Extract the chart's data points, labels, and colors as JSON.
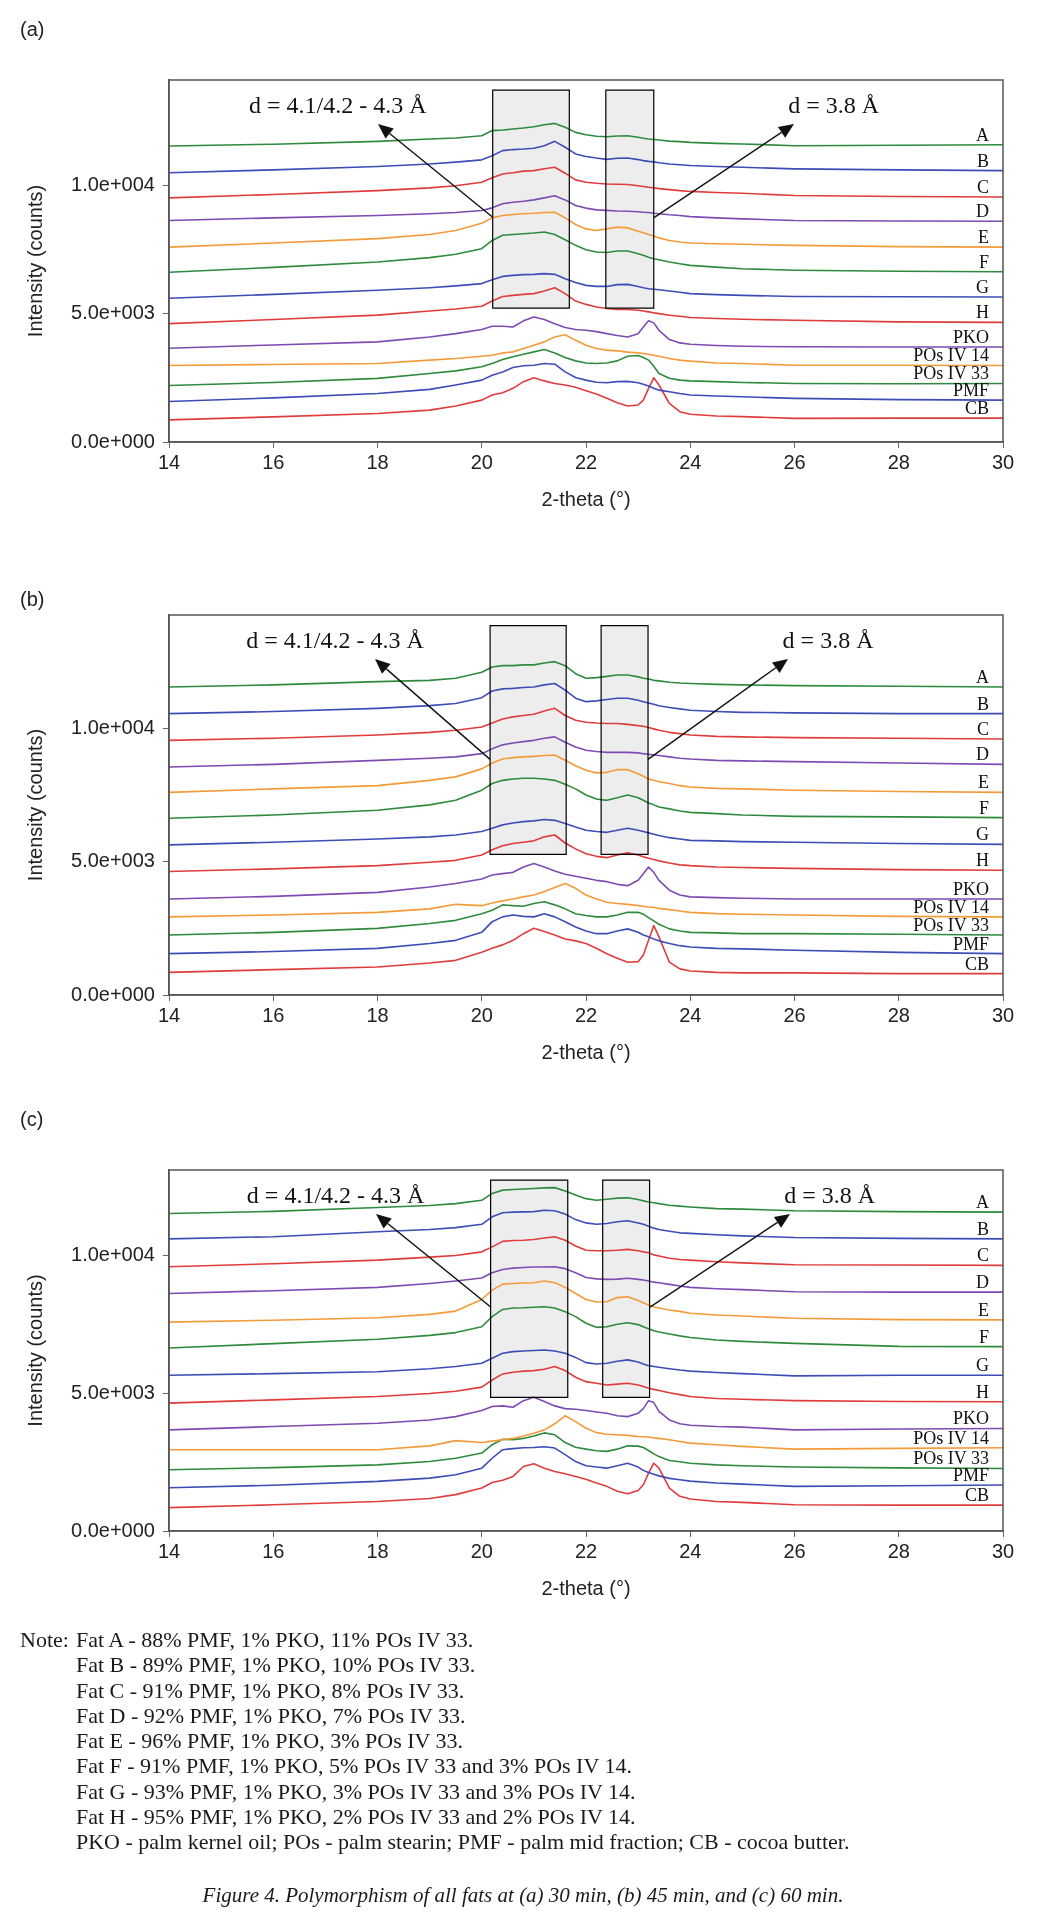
{
  "chart_data": [
    {
      "type": "line",
      "title": "(a)",
      "xlabel": "2-theta (°)",
      "ylabel": "Intensity (counts)",
      "marker": "none",
      "x": [
        14,
        16,
        18,
        19,
        19.5,
        20,
        20.2,
        20.4,
        20.6,
        20.8,
        21,
        21.2,
        21.4,
        21.6,
        21.8,
        22,
        22.2,
        22.4,
        22.6,
        22.8,
        23,
        23.1,
        23.2,
        23.3,
        23.4,
        23.6,
        23.8,
        24,
        24.5,
        25,
        26,
        28,
        30
      ],
      "xlim": [
        14,
        30
      ],
      "xticks": [
        14,
        16,
        18,
        20,
        22,
        24,
        26,
        28,
        30
      ],
      "ylim": [
        0,
        14100
      ],
      "yticks": [
        {
          "value": 0,
          "label": "0.0e+000"
        },
        {
          "value": 5000,
          "label": "5.0e+003"
        },
        {
          "value": 10000,
          "label": "1.0e+004"
        }
      ],
      "series": [
        {
          "name": "A",
          "color": "#2e8b3e",
          "values": [
            11530,
            11600,
            11710,
            11800,
            11840,
            11930,
            12130,
            12150,
            12190,
            12230,
            12280,
            12360,
            12410,
            12260,
            12060,
            11970,
            11910,
            11890,
            11920,
            11930,
            11870,
            11830,
            11800,
            11780,
            11760,
            11720,
            11700,
            11670,
            11630,
            11610,
            11540,
            11560,
            11580
          ]
        },
        {
          "name": "B",
          "color": "#3d4db7",
          "values": [
            10490,
            10600,
            10730,
            10830,
            10900,
            10990,
            11150,
            11350,
            11390,
            11410,
            11440,
            11540,
            11710,
            11480,
            11220,
            11120,
            11060,
            11010,
            11050,
            11060,
            11000,
            10960,
            10930,
            10910,
            10880,
            10830,
            10800,
            10770,
            10730,
            10700,
            10640,
            10600,
            10570
          ]
        },
        {
          "name": "C",
          "color": "#e03c3c",
          "values": [
            9510,
            9640,
            9790,
            9900,
            9980,
            10120,
            10290,
            10440,
            10490,
            10550,
            10570,
            10640,
            10700,
            10470,
            10210,
            10120,
            10080,
            10050,
            10040,
            10030,
            9980,
            9950,
            9920,
            9900,
            9870,
            9830,
            9790,
            9760,
            9720,
            9690,
            9600,
            9560,
            9540
          ]
        },
        {
          "name": "D",
          "color": "#7e4bb3",
          "values": [
            8630,
            8730,
            8820,
            8890,
            8940,
            9020,
            9120,
            9280,
            9340,
            9380,
            9430,
            9510,
            9590,
            9430,
            9210,
            9110,
            9040,
            9020,
            9000,
            8990,
            8970,
            8950,
            8940,
            8910,
            8890,
            8850,
            8820,
            8780,
            8730,
            8690,
            8630,
            8610,
            8600
          ]
        },
        {
          "name": "E",
          "color": "#f59a38",
          "values": [
            7590,
            7750,
            7920,
            8080,
            8240,
            8520,
            8730,
            8820,
            8860,
            8890,
            8910,
            8940,
            8950,
            8730,
            8470,
            8300,
            8240,
            8300,
            8370,
            8340,
            8210,
            8150,
            8080,
            8020,
            7950,
            7850,
            7790,
            7750,
            7720,
            7700,
            7660,
            7610,
            7590
          ]
        },
        {
          "name": "F",
          "color": "#2e8b3e",
          "values": [
            6610,
            6800,
            7010,
            7180,
            7310,
            7530,
            7850,
            8050,
            8080,
            8110,
            8140,
            8180,
            8080,
            7880,
            7660,
            7490,
            7400,
            7380,
            7440,
            7440,
            7330,
            7270,
            7200,
            7140,
            7100,
            7010,
            6940,
            6880,
            6810,
            6750,
            6690,
            6650,
            6630
          ]
        },
        {
          "name": "G",
          "color": "#3d4db7",
          "values": [
            5600,
            5750,
            5910,
            6010,
            6080,
            6170,
            6320,
            6450,
            6490,
            6520,
            6530,
            6560,
            6530,
            6360,
            6210,
            6100,
            6060,
            6060,
            6130,
            6140,
            6060,
            6010,
            5970,
            5950,
            5930,
            5880,
            5830,
            5780,
            5740,
            5710,
            5670,
            5660,
            5650
          ]
        },
        {
          "name": "H",
          "color": "#e03c3c",
          "values": [
            4610,
            4770,
            4940,
            5100,
            5180,
            5290,
            5490,
            5670,
            5710,
            5750,
            5780,
            5880,
            6010,
            5780,
            5490,
            5360,
            5260,
            5200,
            5160,
            5160,
            5130,
            5100,
            5070,
            5030,
            5000,
            4940,
            4900,
            4850,
            4810,
            4780,
            4740,
            4680,
            4660
          ]
        },
        {
          "name": "PKO",
          "color": "#7e4bb3",
          "values": [
            3650,
            3780,
            3900,
            4090,
            4220,
            4380,
            4510,
            4510,
            4480,
            4720,
            4870,
            4770,
            4610,
            4460,
            4380,
            4350,
            4300,
            4220,
            4150,
            4090,
            4220,
            4480,
            4720,
            4640,
            4350,
            3990,
            3860,
            3810,
            3760,
            3730,
            3710,
            3700,
            3700
          ]
        },
        {
          "name": "POs IV 14",
          "color": "#f59a38",
          "values": [
            2980,
            3020,
            3060,
            3190,
            3250,
            3340,
            3380,
            3470,
            3510,
            3640,
            3770,
            3900,
            4090,
            4180,
            3960,
            3770,
            3640,
            3580,
            3550,
            3500,
            3470,
            3450,
            3420,
            3380,
            3340,
            3250,
            3190,
            3150,
            3080,
            3060,
            2990,
            2990,
            2980
          ]
        },
        {
          "name": "POs IV 33",
          "color": "#2e8b3e",
          "values": [
            2200,
            2320,
            2480,
            2670,
            2770,
            2930,
            3060,
            3210,
            3320,
            3420,
            3510,
            3600,
            3470,
            3290,
            3160,
            3080,
            3060,
            3080,
            3160,
            3340,
            3370,
            3290,
            3190,
            2950,
            2670,
            2480,
            2410,
            2380,
            2350,
            2320,
            2280,
            2270,
            2280
          ]
        },
        {
          "name": "PMF",
          "color": "#3d4db7",
          "values": [
            1580,
            1720,
            1890,
            2050,
            2220,
            2410,
            2600,
            2730,
            2900,
            2970,
            2990,
            3060,
            3030,
            2730,
            2510,
            2410,
            2330,
            2310,
            2350,
            2360,
            2310,
            2250,
            2180,
            2090,
            2020,
            1960,
            1890,
            1830,
            1790,
            1760,
            1700,
            1650,
            1630
          ]
        },
        {
          "name": "CB",
          "color": "#e03c3c",
          "values": [
            860,
            980,
            1110,
            1240,
            1400,
            1630,
            1830,
            1920,
            2090,
            2350,
            2500,
            2380,
            2280,
            2220,
            2130,
            2000,
            1870,
            1700,
            1530,
            1400,
            1440,
            1630,
            2090,
            2500,
            2220,
            1500,
            1180,
            1080,
            1010,
            990,
            920,
            930,
            930
          ]
        }
      ],
      "bands": [
        {
          "axis": "x",
          "from": 20.21,
          "to": 21.68,
          "label": "d = 4.1/4.2 - 4.3 Å",
          "color": "#000000"
        },
        {
          "axis": "x",
          "from": 22.38,
          "to": 23.3,
          "label": "d = 3.8 Å",
          "color": "#000000"
        }
      ]
    },
    {
      "type": "line",
      "title": "(b)",
      "xlabel": "2-theta (°)",
      "ylabel": "Intensity (counts)",
      "marker": "none",
      "x": [
        14,
        16,
        18,
        19,
        19.5,
        20,
        20.2,
        20.4,
        20.6,
        20.8,
        21,
        21.2,
        21.4,
        21.6,
        21.8,
        22,
        22.2,
        22.4,
        22.6,
        22.8,
        23,
        23.1,
        23.2,
        23.3,
        23.4,
        23.6,
        23.8,
        24,
        24.5,
        25,
        26,
        28,
        30
      ],
      "xlim": [
        14,
        30
      ],
      "xticks": [
        14,
        16,
        18,
        20,
        22,
        24,
        26,
        28,
        30
      ],
      "ylim": [
        0,
        14250
      ],
      "yticks": [
        {
          "value": 0,
          "label": "0.0e+000"
        },
        {
          "value": 5000,
          "label": "5.0e+003"
        },
        {
          "value": 10000,
          "label": "1.0e+004"
        }
      ],
      "series": [
        {
          "name": "A",
          "color": "#2e8b3e",
          "values": [
            11550,
            11630,
            11750,
            11800,
            11880,
            12100,
            12300,
            12350,
            12350,
            12380,
            12380,
            12450,
            12500,
            12350,
            12050,
            11880,
            11900,
            11950,
            12000,
            12000,
            11930,
            11880,
            11850,
            11800,
            11780,
            11730,
            11700,
            11680,
            11650,
            11630,
            11600,
            11580,
            11550
          ]
        },
        {
          "name": "B",
          "color": "#3d4db7",
          "values": [
            10550,
            10630,
            10750,
            10850,
            10930,
            11150,
            11400,
            11480,
            11500,
            11530,
            11550,
            11630,
            11680,
            11430,
            11130,
            11000,
            11030,
            11080,
            11130,
            11130,
            11050,
            11000,
            10950,
            10900,
            10850,
            10780,
            10730,
            10680,
            10630,
            10600,
            10580,
            10550,
            10550
          ]
        },
        {
          "name": "C",
          "color": "#e03c3c",
          "values": [
            9550,
            9630,
            9750,
            9850,
            9930,
            10050,
            10200,
            10350,
            10430,
            10480,
            10530,
            10650,
            10750,
            10480,
            10300,
            10230,
            10200,
            10180,
            10180,
            10150,
            10100,
            10080,
            10030,
            9980,
            9930,
            9850,
            9800,
            9750,
            9700,
            9680,
            9650,
            9630,
            9600
          ]
        },
        {
          "name": "D",
          "color": "#7e4bb3",
          "values": [
            8550,
            8650,
            8800,
            8880,
            8930,
            9050,
            9230,
            9380,
            9450,
            9500,
            9550,
            9630,
            9680,
            9480,
            9300,
            9180,
            9130,
            9100,
            9100,
            9100,
            9080,
            9050,
            9030,
            9000,
            8980,
            8930,
            8880,
            8850,
            8800,
            8780,
            8750,
            8700,
            8650
          ]
        },
        {
          "name": "E",
          "color": "#f59a38",
          "values": [
            7600,
            7730,
            7850,
            8050,
            8180,
            8480,
            8700,
            8850,
            8900,
            8930,
            8950,
            8980,
            9000,
            8800,
            8600,
            8430,
            8330,
            8350,
            8450,
            8450,
            8300,
            8200,
            8100,
            8050,
            8000,
            7930,
            7850,
            7800,
            7750,
            7730,
            7680,
            7630,
            7600
          ]
        },
        {
          "name": "F",
          "color": "#2e8b3e",
          "values": [
            6630,
            6750,
            6930,
            7130,
            7300,
            7680,
            7930,
            8050,
            8100,
            8130,
            8130,
            8100,
            8050,
            7900,
            7730,
            7500,
            7350,
            7300,
            7400,
            7500,
            7400,
            7300,
            7200,
            7130,
            7050,
            6980,
            6900,
            6850,
            6800,
            6750,
            6700,
            6680,
            6650
          ]
        },
        {
          "name": "G",
          "color": "#3d4db7",
          "values": [
            5630,
            5730,
            5850,
            5930,
            6000,
            6130,
            6250,
            6380,
            6450,
            6500,
            6530,
            6580,
            6550,
            6430,
            6300,
            6180,
            6130,
            6100,
            6180,
            6250,
            6180,
            6130,
            6080,
            6030,
            5980,
            5900,
            5850,
            5800,
            5780,
            5750,
            5730,
            5680,
            5650
          ]
        },
        {
          "name": "H",
          "color": "#e03c3c",
          "values": [
            4630,
            4730,
            4850,
            4980,
            5050,
            5250,
            5450,
            5600,
            5680,
            5730,
            5780,
            5930,
            6000,
            5700,
            5480,
            5300,
            5200,
            5150,
            5250,
            5330,
            5250,
            5180,
            5130,
            5080,
            5030,
            4950,
            4880,
            4850,
            4800,
            4780,
            4750,
            4700,
            4680
          ]
        },
        {
          "name": "PKO",
          "color": "#7e4bb3",
          "values": [
            3600,
            3700,
            3850,
            4050,
            4180,
            4350,
            4500,
            4550,
            4600,
            4800,
            4930,
            4800,
            4650,
            4530,
            4450,
            4380,
            4300,
            4250,
            4150,
            4100,
            4300,
            4550,
            4800,
            4600,
            4300,
            3930,
            3750,
            3680,
            3650,
            3630,
            3600,
            3600,
            3600
          ]
        },
        {
          "name": "POs IV 14",
          "color": "#f59a38",
          "values": [
            2930,
            3000,
            3100,
            3230,
            3400,
            3350,
            3450,
            3530,
            3600,
            3680,
            3750,
            3880,
            4030,
            4180,
            4000,
            3750,
            3600,
            3480,
            3430,
            3400,
            3350,
            3330,
            3300,
            3280,
            3250,
            3200,
            3150,
            3100,
            3050,
            3030,
            3000,
            2950,
            2930
          ]
        },
        {
          "name": "POs IV 33",
          "color": "#2e8b3e",
          "values": [
            2250,
            2350,
            2500,
            2680,
            2800,
            3050,
            3180,
            3380,
            3350,
            3330,
            3430,
            3500,
            3380,
            3230,
            3050,
            2980,
            2930,
            2930,
            3000,
            3100,
            3100,
            3030,
            2900,
            2780,
            2650,
            2480,
            2400,
            2350,
            2330,
            2300,
            2300,
            2280,
            2250
          ]
        },
        {
          "name": "PMF",
          "color": "#3d4db7",
          "values": [
            1550,
            1630,
            1750,
            1930,
            2050,
            2350,
            2750,
            2930,
            3000,
            2950,
            2930,
            3050,
            2930,
            2750,
            2550,
            2400,
            2300,
            2300,
            2400,
            2480,
            2350,
            2250,
            2180,
            2100,
            2030,
            1930,
            1850,
            1800,
            1750,
            1730,
            1680,
            1600,
            1550
          ]
        },
        {
          "name": "CB",
          "color": "#e03c3c",
          "values": [
            850,
            950,
            1050,
            1200,
            1300,
            1600,
            1750,
            1880,
            2050,
            2300,
            2500,
            2380,
            2250,
            2100,
            2030,
            1930,
            1750,
            1550,
            1380,
            1230,
            1250,
            1500,
            2050,
            2600,
            2180,
            1230,
            980,
            900,
            850,
            830,
            830,
            800,
            800
          ]
        }
      ],
      "bands": [
        {
          "axis": "x",
          "from": 20.16,
          "to": 21.62,
          "label": "d = 4.1/4.2 - 4.3 Å",
          "color": "#000000"
        },
        {
          "axis": "x",
          "from": 22.29,
          "to": 23.19,
          "label": "d = 3.8 Å",
          "color": "#000000"
        }
      ]
    },
    {
      "type": "line",
      "title": "(c)",
      "xlabel": "2-theta (°)",
      "ylabel": "Intensity (counts)",
      "marker": "none",
      "x": [
        14,
        16,
        18,
        19,
        19.5,
        20,
        20.2,
        20.4,
        20.6,
        20.8,
        21,
        21.2,
        21.4,
        21.6,
        21.8,
        22,
        22.2,
        22.4,
        22.6,
        22.8,
        23,
        23.1,
        23.2,
        23.3,
        23.4,
        23.6,
        23.8,
        24,
        24.5,
        25,
        26,
        28,
        30
      ],
      "xlim": [
        14,
        30
      ],
      "xticks": [
        14,
        16,
        18,
        20,
        22,
        24,
        26,
        28,
        30
      ],
      "ylim": [
        0,
        13100
      ],
      "yticks": [
        {
          "value": 0,
          "label": "0.0e+000"
        },
        {
          "value": 5000,
          "label": "5.0e+003"
        },
        {
          "value": 10000,
          "label": "1.0e+004"
        }
      ],
      "series": [
        {
          "name": "A",
          "color": "#2e8b3e",
          "values": [
            11520,
            11600,
            11740,
            11810,
            11880,
            12000,
            12250,
            12370,
            12390,
            12410,
            12430,
            12450,
            12460,
            12340,
            12190,
            12060,
            12000,
            12040,
            12080,
            12090,
            12030,
            11980,
            11940,
            11910,
            11880,
            11820,
            11790,
            11760,
            11700,
            11680,
            11620,
            11590,
            11570
          ]
        },
        {
          "name": "B",
          "color": "#3d4db7",
          "values": [
            10600,
            10680,
            10860,
            10940,
            11010,
            11130,
            11400,
            11550,
            11570,
            11580,
            11590,
            11640,
            11620,
            11500,
            11300,
            11180,
            11130,
            11160,
            11220,
            11260,
            11180,
            11130,
            11060,
            10990,
            10940,
            10880,
            10820,
            10800,
            10750,
            10710,
            10650,
            10620,
            10600
          ]
        },
        {
          "name": "C",
          "color": "#e03c3c",
          "values": [
            9590,
            9700,
            9830,
            9940,
            10000,
            10130,
            10310,
            10510,
            10540,
            10550,
            10580,
            10630,
            10680,
            10550,
            10340,
            10190,
            10170,
            10170,
            10190,
            10220,
            10170,
            10130,
            10100,
            10020,
            9980,
            9900,
            9850,
            9830,
            9770,
            9730,
            9660,
            9650,
            9640
          ]
        },
        {
          "name": "D",
          "color": "#7e4bb3",
          "values": [
            8620,
            8720,
            8840,
            8980,
            9070,
            9180,
            9370,
            9490,
            9540,
            9560,
            9580,
            9580,
            9590,
            9520,
            9370,
            9200,
            9150,
            9130,
            9140,
            9170,
            9130,
            9110,
            9070,
            9030,
            9010,
            8950,
            8890,
            8840,
            8790,
            8760,
            8680,
            8670,
            8670
          ]
        },
        {
          "name": "E",
          "color": "#f59a38",
          "values": [
            7580,
            7650,
            7740,
            7860,
            7980,
            8400,
            8740,
            8960,
            8980,
            9000,
            9010,
            9070,
            9010,
            8840,
            8620,
            8400,
            8310,
            8320,
            8470,
            8500,
            8360,
            8280,
            8200,
            8140,
            8090,
            8020,
            7970,
            7900,
            7840,
            7800,
            7720,
            7670,
            7660
          ]
        },
        {
          "name": "F",
          "color": "#2e8b3e",
          "values": [
            6640,
            6800,
            6960,
            7100,
            7200,
            7410,
            7780,
            8040,
            8090,
            8100,
            8120,
            8140,
            8090,
            7960,
            7780,
            7540,
            7390,
            7410,
            7500,
            7560,
            7490,
            7410,
            7340,
            7270,
            7220,
            7150,
            7080,
            7020,
            6930,
            6880,
            6810,
            6700,
            6690
          ]
        },
        {
          "name": "G",
          "color": "#3d4db7",
          "values": [
            5650,
            5710,
            5780,
            5890,
            5970,
            6090,
            6270,
            6450,
            6510,
            6530,
            6550,
            6570,
            6530,
            6450,
            6300,
            6110,
            6060,
            6090,
            6160,
            6210,
            6130,
            6060,
            6000,
            5970,
            5940,
            5890,
            5840,
            5800,
            5750,
            5710,
            5630,
            5650,
            5650
          ]
        },
        {
          "name": "H",
          "color": "#e03c3c",
          "values": [
            4640,
            4760,
            4880,
            4990,
            5070,
            5220,
            5480,
            5700,
            5760,
            5800,
            5820,
            5870,
            5970,
            5820,
            5580,
            5420,
            5360,
            5300,
            5330,
            5360,
            5300,
            5240,
            5180,
            5140,
            5100,
            5020,
            4950,
            4880,
            4810,
            4780,
            4730,
            4700,
            4690
          ]
        },
        {
          "name": "PKO",
          "color": "#7e4bb3",
          "values": [
            3670,
            3790,
            3910,
            4030,
            4150,
            4370,
            4520,
            4540,
            4490,
            4730,
            4850,
            4700,
            4540,
            4440,
            4420,
            4370,
            4320,
            4270,
            4180,
            4150,
            4270,
            4440,
            4730,
            4660,
            4340,
            4030,
            3890,
            3840,
            3790,
            3770,
            3670,
            3700,
            3720
          ]
        },
        {
          "name": "POs IV 14",
          "color": "#f59a38",
          "values": [
            2950,
            2950,
            2950,
            3090,
            3280,
            3210,
            3260,
            3310,
            3360,
            3450,
            3550,
            3670,
            3890,
            4180,
            3970,
            3730,
            3570,
            3510,
            3490,
            3470,
            3430,
            3420,
            3410,
            3380,
            3360,
            3310,
            3250,
            3190,
            3130,
            3070,
            2970,
            3000,
            3020
          ]
        },
        {
          "name": "POs IV 33",
          "color": "#2e8b3e",
          "values": [
            2220,
            2300,
            2400,
            2520,
            2640,
            2830,
            3130,
            3330,
            3310,
            3360,
            3450,
            3560,
            3490,
            3210,
            3040,
            2970,
            2910,
            2890,
            2970,
            3090,
            3080,
            3030,
            2920,
            2800,
            2700,
            2560,
            2510,
            2460,
            2400,
            2370,
            2320,
            2290,
            2270
          ]
        },
        {
          "name": "PMF",
          "color": "#3d4db7",
          "values": [
            1570,
            1660,
            1800,
            1920,
            2040,
            2280,
            2640,
            2950,
            2990,
            3020,
            3030,
            3060,
            3010,
            2770,
            2520,
            2370,
            2320,
            2280,
            2370,
            2460,
            2320,
            2200,
            2120,
            2060,
            2000,
            1910,
            1860,
            1810,
            1740,
            1700,
            1620,
            1640,
            1670
          ]
        },
        {
          "name": "CB",
          "color": "#e03c3c",
          "values": [
            850,
            950,
            1070,
            1180,
            1320,
            1560,
            1760,
            1840,
            1980,
            2340,
            2440,
            2280,
            2160,
            2080,
            1980,
            1880,
            1740,
            1620,
            1440,
            1350,
            1470,
            1680,
            2100,
            2460,
            2280,
            1560,
            1260,
            1160,
            1070,
            1040,
            950,
            940,
            940
          ]
        }
      ],
      "bands": [
        {
          "axis": "x",
          "from": 20.17,
          "to": 21.65,
          "label": "d = 4.1/4.2 - 4.3 Å",
          "color": "#000000"
        },
        {
          "axis": "x",
          "from": 22.32,
          "to": 23.22,
          "label": "d = 3.8 Å",
          "color": "#000000"
        }
      ],
      "annotations": [
        "Note:",
        "Fat A - 88% PMF, 1% PKO, 11% POs IV 33.",
        "Fat B - 89% PMF, 1% PKO, 10% POs IV 33.",
        "Fat C - 91% PMF, 1% PKO, 8% POs IV 33.",
        "Fat D - 92% PMF, 1% PKO, 7% POs IV 33.",
        "Fat E - 96% PMF, 1% PKO, 3% POs IV 33.",
        "Fat F - 91% PMF, 1% PKO, 5% POs IV 33 and 3% POs IV 14.",
        "Fat G - 93% PMF, 1% PKO, 3% POs IV 33 and 3% POs IV 14.",
        "Fat H - 95% PMF, 1% PKO, 2% POs IV 33 and 2% POs IV 14.",
        "PKO - palm kernel oil; POs - palm stearin; PMF - palm mid fraction; CB - cocoa butter.",
        "Figure 4. Polymorphism of all fats at (a) 30 min, (b) 45 min, and (c) 60 min."
      ]
    }
  ]
}
